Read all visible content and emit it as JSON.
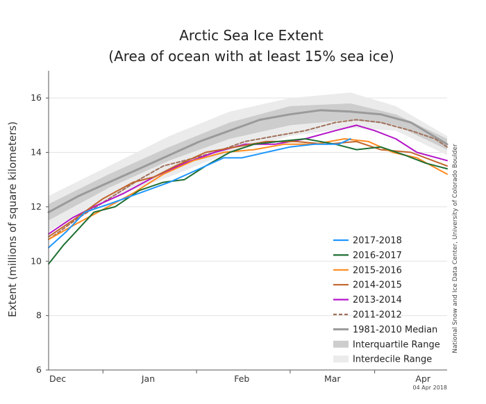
{
  "chart_data": {
    "type": "line",
    "title": "Arctic Sea Ice Extent",
    "subtitle": "(Area of ocean with at least 15% sea ice)",
    "ylabel": "Extent (millions of square kilometers)",
    "xlabel": "",
    "ylim": [
      6,
      17
    ],
    "yticks": [
      "6",
      "8",
      "10",
      "12",
      "14",
      "16"
    ],
    "xtick_labels": [
      "Dec",
      "Jan",
      "Feb",
      "Mar",
      "Apr"
    ],
    "x_day_range": [
      0,
      132
    ],
    "month_ticks_day": [
      18,
      49,
      80,
      108,
      139
    ],
    "grid": true,
    "legend_position": "bottom-right",
    "credit": "National Snow and Ice Data Center, University of Colorado Boulder",
    "date_stamp": "04 Apr 2018",
    "bands": [
      {
        "name": "Interdecile Range",
        "color": "#ebebeb",
        "lower": [
          [
            0,
            11.1
          ],
          [
            20,
            12.3
          ],
          [
            40,
            13.1
          ],
          [
            60,
            14.0
          ],
          [
            80,
            14.6
          ],
          [
            100,
            14.9
          ],
          [
            115,
            14.8
          ],
          [
            132,
            13.9
          ]
        ],
        "upper": [
          [
            0,
            12.4
          ],
          [
            20,
            13.5
          ],
          [
            40,
            14.6
          ],
          [
            60,
            15.5
          ],
          [
            80,
            16.0
          ],
          [
            100,
            16.2
          ],
          [
            115,
            15.7
          ],
          [
            132,
            14.6
          ]
        ]
      },
      {
        "name": "Interquartile Range",
        "color": "#cdcdcd",
        "lower": [
          [
            0,
            11.5
          ],
          [
            20,
            12.7
          ],
          [
            40,
            13.7
          ],
          [
            60,
            14.5
          ],
          [
            80,
            15.0
          ],
          [
            100,
            15.2
          ],
          [
            115,
            15.0
          ],
          [
            132,
            14.1
          ]
        ],
        "upper": [
          [
            0,
            12.1
          ],
          [
            20,
            13.2
          ],
          [
            40,
            14.2
          ],
          [
            60,
            15.1
          ],
          [
            80,
            15.7
          ],
          [
            100,
            15.8
          ],
          [
            115,
            15.4
          ],
          [
            132,
            14.5
          ]
        ]
      }
    ],
    "series": [
      {
        "name": "1981-2010 Median",
        "color": "#9a9a9a",
        "width": 3,
        "dash": "",
        "points": [
          [
            0,
            11.8
          ],
          [
            10,
            12.4
          ],
          [
            20,
            12.9
          ],
          [
            30,
            13.4
          ],
          [
            40,
            13.9
          ],
          [
            50,
            14.4
          ],
          [
            60,
            14.8
          ],
          [
            70,
            15.2
          ],
          [
            80,
            15.4
          ],
          [
            90,
            15.55
          ],
          [
            100,
            15.5
          ],
          [
            110,
            15.4
          ],
          [
            120,
            15.1
          ],
          [
            132,
            14.3
          ]
        ]
      },
      {
        "name": "2011-2012",
        "color": "#a0705a",
        "width": 2,
        "dash": "5,3",
        "points": [
          [
            0,
            10.8
          ],
          [
            10,
            11.6
          ],
          [
            20,
            12.3
          ],
          [
            30,
            13.0
          ],
          [
            38,
            13.5
          ],
          [
            45,
            13.7
          ],
          [
            55,
            14.0
          ],
          [
            65,
            14.4
          ],
          [
            75,
            14.6
          ],
          [
            85,
            14.8
          ],
          [
            95,
            15.1
          ],
          [
            102,
            15.2
          ],
          [
            110,
            15.1
          ],
          [
            120,
            14.8
          ],
          [
            128,
            14.5
          ],
          [
            132,
            14.2
          ]
        ]
      },
      {
        "name": "2013-2014",
        "color": "#b414c8",
        "width": 2,
        "dash": "",
        "points": [
          [
            0,
            11.0
          ],
          [
            8,
            11.6
          ],
          [
            15,
            12.0
          ],
          [
            25,
            12.5
          ],
          [
            35,
            13.1
          ],
          [
            45,
            13.6
          ],
          [
            55,
            14.0
          ],
          [
            65,
            14.3
          ],
          [
            75,
            14.3
          ],
          [
            85,
            14.5
          ],
          [
            95,
            14.8
          ],
          [
            102,
            15.0
          ],
          [
            108,
            14.8
          ],
          [
            115,
            14.5
          ],
          [
            122,
            14.0
          ],
          [
            132,
            13.7
          ]
        ]
      },
      {
        "name": "2014-2015",
        "color": "#c0642a",
        "width": 2,
        "dash": "",
        "points": [
          [
            0,
            10.9
          ],
          [
            8,
            11.5
          ],
          [
            18,
            12.3
          ],
          [
            28,
            12.9
          ],
          [
            35,
            13.1
          ],
          [
            42,
            13.5
          ],
          [
            52,
            14.0
          ],
          [
            62,
            14.2
          ],
          [
            72,
            14.4
          ],
          [
            82,
            14.4
          ],
          [
            92,
            14.3
          ],
          [
            102,
            14.4
          ],
          [
            110,
            14.1
          ],
          [
            120,
            14.0
          ],
          [
            132,
            13.5
          ]
        ]
      },
      {
        "name": "2015-2016",
        "color": "#ff8a1e",
        "width": 2,
        "dash": "",
        "points": [
          [
            0,
            10.8
          ],
          [
            8,
            11.3
          ],
          [
            18,
            11.9
          ],
          [
            28,
            12.5
          ],
          [
            38,
            13.2
          ],
          [
            48,
            13.7
          ],
          [
            58,
            14.0
          ],
          [
            68,
            14.1
          ],
          [
            78,
            14.3
          ],
          [
            88,
            14.3
          ],
          [
            98,
            14.5
          ],
          [
            106,
            14.4
          ],
          [
            114,
            14.0
          ],
          [
            122,
            13.8
          ],
          [
            132,
            13.2
          ]
        ]
      },
      {
        "name": "2016-2017",
        "color": "#1e6e32",
        "width": 2,
        "dash": "",
        "points": [
          [
            0,
            9.9
          ],
          [
            5,
            10.6
          ],
          [
            10,
            11.2
          ],
          [
            15,
            11.8
          ],
          [
            22,
            12.0
          ],
          [
            30,
            12.6
          ],
          [
            38,
            12.9
          ],
          [
            45,
            13.0
          ],
          [
            52,
            13.5
          ],
          [
            60,
            14.0
          ],
          [
            68,
            14.3
          ],
          [
            76,
            14.4
          ],
          [
            85,
            14.5
          ],
          [
            95,
            14.3
          ],
          [
            102,
            14.1
          ],
          [
            110,
            14.2
          ],
          [
            118,
            13.9
          ],
          [
            125,
            13.6
          ],
          [
            132,
            13.4
          ]
        ]
      },
      {
        "name": "2017-2018",
        "color": "#1e96ff",
        "width": 2,
        "dash": "",
        "points": [
          [
            0,
            10.5
          ],
          [
            6,
            11.1
          ],
          [
            12,
            11.8
          ],
          [
            20,
            12.1
          ],
          [
            30,
            12.5
          ],
          [
            40,
            12.9
          ],
          [
            50,
            13.4
          ],
          [
            58,
            13.8
          ],
          [
            64,
            13.8
          ],
          [
            72,
            14.0
          ],
          [
            80,
            14.2
          ],
          [
            88,
            14.3
          ],
          [
            96,
            14.3
          ],
          [
            100,
            14.5
          ]
        ]
      }
    ],
    "legend": [
      {
        "label": "2017-2018",
        "kind": "line",
        "color": "#1e96ff",
        "dash": ""
      },
      {
        "label": "2016-2017",
        "kind": "line",
        "color": "#1e6e32",
        "dash": ""
      },
      {
        "label": "2015-2016",
        "kind": "line",
        "color": "#ff8a1e",
        "dash": ""
      },
      {
        "label": "2014-2015",
        "kind": "line",
        "color": "#c0642a",
        "dash": ""
      },
      {
        "label": "2013-2014",
        "kind": "line",
        "color": "#b414c8",
        "dash": ""
      },
      {
        "label": "2011-2012",
        "kind": "line",
        "color": "#a0705a",
        "dash": "5,3"
      },
      {
        "label": "1981-2010 Median",
        "kind": "line",
        "color": "#9a9a9a",
        "dash": ""
      },
      {
        "label": "Interquartile Range",
        "kind": "band",
        "color": "#cdcdcd",
        "dash": ""
      },
      {
        "label": "Interdecile Range",
        "kind": "band",
        "color": "#ebebeb",
        "dash": ""
      }
    ]
  }
}
